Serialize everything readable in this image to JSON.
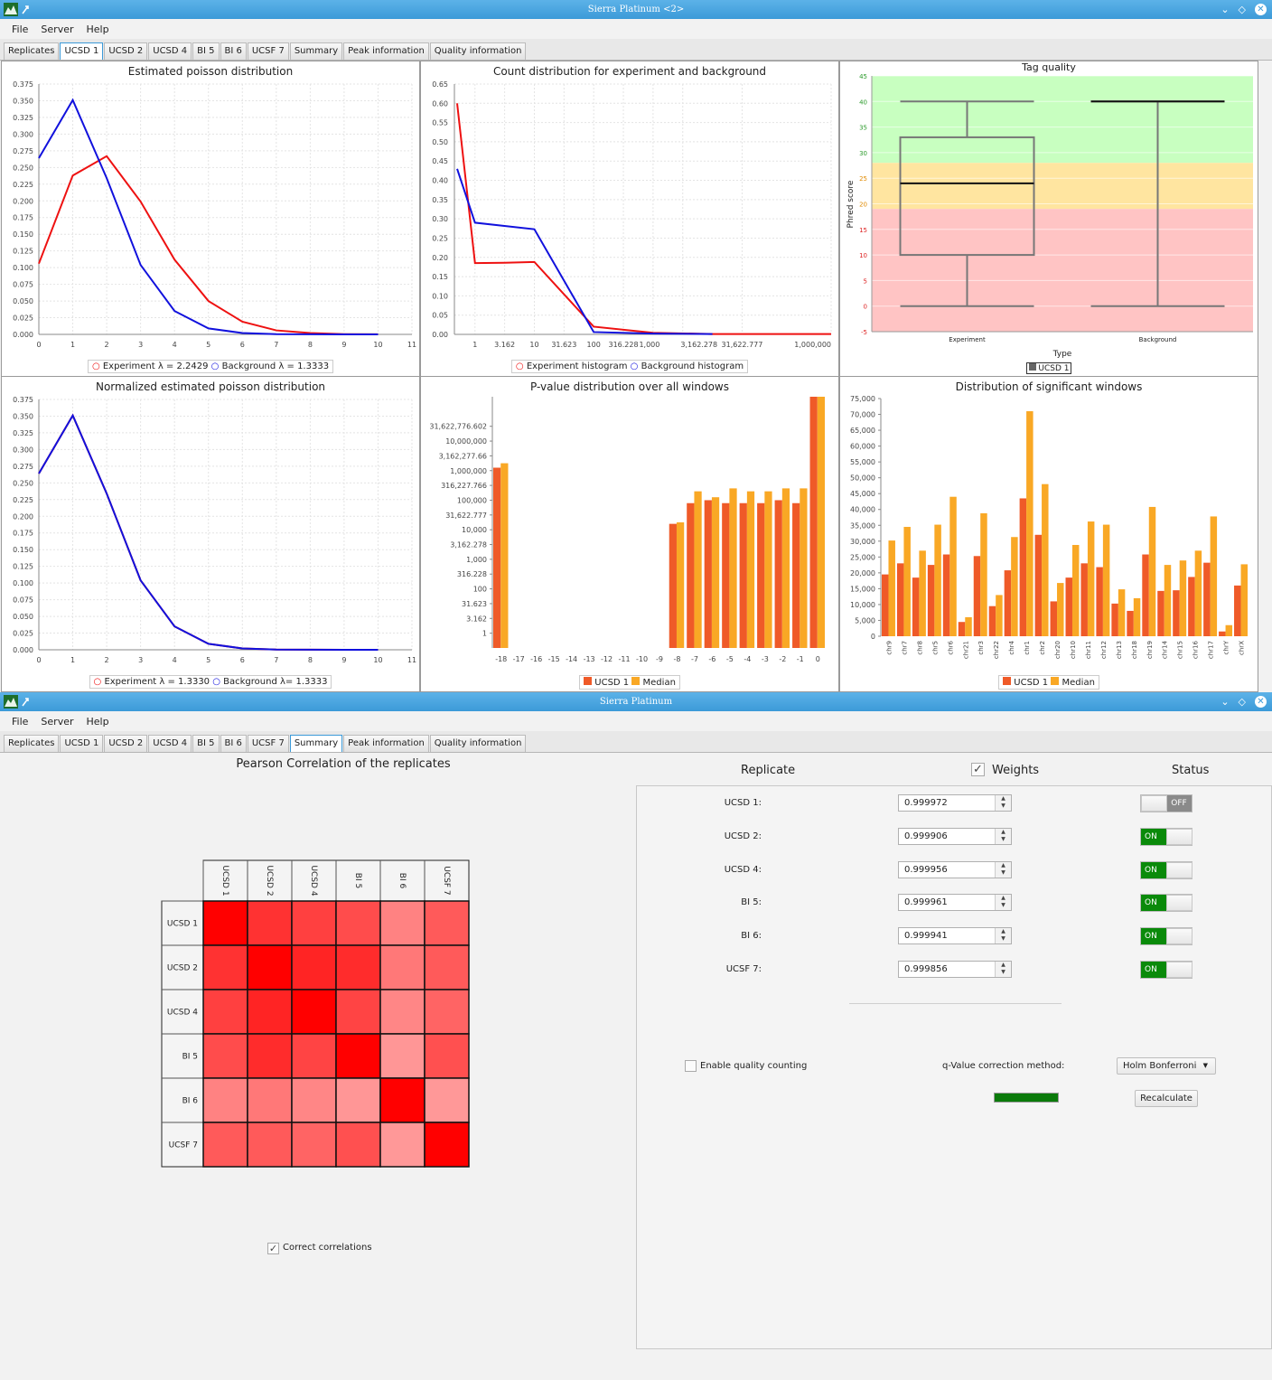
{
  "window1": {
    "title": "Sierra Platinum <2>",
    "menu": [
      "File",
      "Server",
      "Help"
    ],
    "tabs": [
      "Replicates",
      "UCSD 1",
      "UCSD 2",
      "UCSD 4",
      "BI 5",
      "BI 6",
      "UCSF 7",
      "Summary",
      "Peak information",
      "Quality information"
    ],
    "selected_tab": "UCSD 1",
    "panels": {
      "poisson": {
        "title": "Estimated poisson distribution",
        "legend1": "Experiment λ = 2.2429",
        "legend2": "Background λ = 1.3333"
      },
      "count": {
        "title": "Count distribution for experiment and background",
        "legend1": "Experiment histogram",
        "legend2": "Background histogram"
      },
      "tag": {
        "title": "Tag quality",
        "ylabel": "Phred score",
        "xlabel": "Type",
        "legend": "UCSD 1"
      },
      "norm": {
        "title": "Normalized estimated poisson distribution",
        "legend1": "Experiment λ = 1.3330",
        "legend2": "Background λ= 1.3333"
      },
      "pvalue": {
        "title": "P-value distribution over all windows",
        "legend1": "UCSD 1",
        "legend2": "Median"
      },
      "sigwin": {
        "title": "Distribution of significant windows",
        "legend1": "UCSD 1",
        "legend2": "Median"
      }
    }
  },
  "window2": {
    "title": "Sierra Platinum",
    "menu": [
      "File",
      "Server",
      "Help"
    ],
    "tabs": [
      "Replicates",
      "UCSD 1",
      "UCSD 2",
      "UCSD 4",
      "BI 5",
      "BI 6",
      "UCSF 7",
      "Summary",
      "Peak information",
      "Quality information"
    ],
    "selected_tab": "Summary",
    "heatmap_title": "Pearson Correlation of the replicates",
    "heatmap_labels": [
      "UCSD 1",
      "UCSD 2",
      "UCSD 4",
      "BI 5",
      "BI 6",
      "UCSF 7"
    ],
    "correct_correlations_label": "Correct correlations",
    "correct_correlations_checked": true,
    "header_replicate": "Replicate",
    "header_weights": "Weights",
    "header_status": "Status",
    "replicates": [
      {
        "label": "UCSD 1:",
        "weight": "0.999972",
        "status": "OFF"
      },
      {
        "label": "UCSD 2:",
        "weight": "0.999906",
        "status": "ON"
      },
      {
        "label": "UCSD 4:",
        "weight": "0.999956",
        "status": "ON"
      },
      {
        "label": "BI 5:",
        "weight": "0.999961",
        "status": "ON"
      },
      {
        "label": "BI 6:",
        "weight": "0.999941",
        "status": "ON"
      },
      {
        "label": "UCSF 7:",
        "weight": "0.999856",
        "status": "ON"
      }
    ],
    "enable_quality_label": "Enable quality counting",
    "qvalue_label": "q-Value correction method:",
    "qvalue_method": "Holm Bonferroni",
    "recalculate_label": "Recalculate"
  },
  "colors": {
    "experiment": "#ee1111",
    "background": "#1111dd",
    "bar_ucsd": "#ef5a28",
    "bar_median": "#f9a825",
    "titlebar": "#3c9ad8"
  },
  "chart_data": [
    {
      "type": "line",
      "title": "Estimated poisson distribution",
      "x": [
        0,
        1,
        2,
        3,
        4,
        5,
        6,
        7,
        8,
        9,
        10
      ],
      "xlim": [
        0,
        11
      ],
      "ylim": [
        0,
        0.375
      ],
      "series": [
        {
          "name": "Experiment λ = 2.2429",
          "values": [
            0.106,
            0.238,
            0.267,
            0.199,
            0.112,
            0.05,
            0.019,
            0.006,
            0.002,
            0.0004,
            0.0001
          ]
        },
        {
          "name": "Background λ = 1.3333",
          "values": [
            0.264,
            0.351,
            0.234,
            0.104,
            0.035,
            0.009,
            0.002,
            0.0004,
            0.0001,
            0.0,
            0.0
          ]
        }
      ]
    },
    {
      "type": "line",
      "title": "Count distribution for experiment and background",
      "x_scale": "log",
      "x_ticks": [
        "1",
        "3.162",
        "10",
        "31.623",
        "100",
        "316.228",
        "1,000",
        "3,162.278",
        "31,622.777",
        "1,000,000"
      ],
      "ylim": [
        0,
        0.65
      ],
      "series": [
        {
          "name": "Experiment histogram",
          "points": [
            [
              0.5,
              0.6
            ],
            [
              1,
              0.185
            ],
            [
              3.162,
              0.186
            ],
            [
              10,
              0.188
            ],
            [
              100,
              0.02
            ],
            [
              1000,
              0.004
            ],
            [
              10000,
              0.001
            ],
            [
              1000000,
              0.001
            ]
          ]
        },
        {
          "name": "Background histogram",
          "points": [
            [
              0.5,
              0.43
            ],
            [
              1,
              0.29
            ],
            [
              10,
              0.273
            ],
            [
              100,
              0.006
            ],
            [
              1000,
              0.002
            ],
            [
              10000,
              0.001
            ]
          ]
        }
      ]
    },
    {
      "type": "box",
      "title": "Tag quality",
      "ylabel": "Phred score",
      "xlabel": "Type",
      "ylim": [
        -5,
        45
      ],
      "categories": [
        "Experiment",
        "Background"
      ],
      "boxes": [
        {
          "min": 0,
          "q1": 10,
          "median": 24,
          "q3": 33,
          "max": 40
        },
        {
          "min": 0,
          "q1": 40,
          "median": 40,
          "q3": 40,
          "max": 40
        }
      ],
      "bands": [
        {
          "from": 28,
          "to": 45,
          "color": "#c8ffc0"
        },
        {
          "from": 19,
          "to": 28,
          "color": "#ffe5a0"
        },
        {
          "from": -5,
          "to": 19,
          "color": "#ffc4c4"
        }
      ]
    },
    {
      "type": "line",
      "title": "Normalized estimated poisson distribution",
      "x": [
        0,
        1,
        2,
        3,
        4,
        5,
        6,
        7,
        8,
        9,
        10
      ],
      "xlim": [
        0,
        11
      ],
      "ylim": [
        0,
        0.375
      ],
      "series": [
        {
          "name": "Experiment λ = 1.3330",
          "values": [
            0.264,
            0.351,
            0.234,
            0.104,
            0.035,
            0.009,
            0.002,
            0.0004,
            0.0001,
            0.0,
            0.0
          ]
        },
        {
          "name": "Background λ= 1.3333",
          "values": [
            0.264,
            0.351,
            0.234,
            0.104,
            0.035,
            0.009,
            0.002,
            0.0004,
            0.0001,
            0.0,
            0.0
          ]
        }
      ]
    },
    {
      "type": "bar",
      "title": "P-value distribution over all windows",
      "y_scale": "log",
      "ylim_log10": [
        -0.5,
        8
      ],
      "y_ticks": [
        "1",
        "3.162",
        "31.623",
        "100",
        "316.228",
        "1,000",
        "3,162.278",
        "10,000",
        "31,622.777",
        "100,000",
        "316,227.766",
        "1,000,000",
        "3,162,277.66",
        "10,000,000",
        "31,622,776.602"
      ],
      "categories": [
        "-18",
        "-17",
        "-16",
        "-15",
        "-14",
        "-13",
        "-12",
        "-11",
        "-10",
        "-9",
        "-8",
        "-7",
        "-6",
        "-5",
        "-4",
        "-3",
        "-2",
        "-1",
        "0"
      ],
      "series": [
        {
          "name": "UCSD 1",
          "log10_values": [
            5.6,
            null,
            null,
            null,
            null,
            null,
            null,
            null,
            null,
            null,
            3.7,
            4.4,
            4.5,
            4.4,
            4.4,
            4.4,
            4.5,
            4.4,
            8.0
          ]
        },
        {
          "name": "Median",
          "log10_values": [
            5.75,
            null,
            null,
            null,
            null,
            null,
            null,
            null,
            null,
            null,
            3.75,
            4.8,
            4.6,
            4.9,
            4.8,
            4.8,
            4.9,
            4.9,
            8.0
          ]
        }
      ]
    },
    {
      "type": "bar",
      "title": "Distribution of significant windows",
      "ylim": [
        0,
        75000
      ],
      "categories": [
        "chr9",
        "chr7",
        "chr8",
        "chr5",
        "chr6",
        "chr21",
        "chr3",
        "chr22",
        "chr4",
        "chr1",
        "chr2",
        "chr20",
        "chr10",
        "chr11",
        "chr12",
        "chr13",
        "chr18",
        "chr19",
        "chr14",
        "chr15",
        "chr16",
        "chr17",
        "chrY",
        "chrX"
      ],
      "series": [
        {
          "name": "UCSD 1",
          "values": [
            19500,
            23000,
            18500,
            22500,
            25800,
            4500,
            25300,
            9500,
            20800,
            43500,
            32000,
            11000,
            18500,
            23000,
            21800,
            10300,
            8000,
            25800,
            14300,
            14500,
            18700,
            23200,
            1500,
            16000
          ]
        },
        {
          "name": "Median",
          "values": [
            30200,
            34500,
            27000,
            35200,
            44000,
            6000,
            38800,
            13000,
            31300,
            71000,
            48000,
            16800,
            28800,
            36200,
            35200,
            14800,
            12000,
            40800,
            22500,
            23900,
            27000,
            37800,
            3500,
            22700
          ]
        }
      ]
    },
    {
      "type": "heatmap",
      "title": "Pearson Correlation of the replicates",
      "labels": [
        "UCSD 1",
        "UCSD 2",
        "UCSD 4",
        "BI 5",
        "BI 6",
        "UCSF 7"
      ],
      "values": [
        [
          1.0,
          0.75,
          0.68,
          0.62,
          0.35,
          0.55
        ],
        [
          0.75,
          1.0,
          0.82,
          0.78,
          0.4,
          0.55
        ],
        [
          0.68,
          0.82,
          1.0,
          0.66,
          0.33,
          0.5
        ],
        [
          0.62,
          0.78,
          0.66,
          1.0,
          0.25,
          0.6
        ],
        [
          0.35,
          0.4,
          0.33,
          0.25,
          1.0,
          0.24
        ],
        [
          0.55,
          0.55,
          0.5,
          0.6,
          0.24,
          1.0
        ]
      ]
    }
  ]
}
